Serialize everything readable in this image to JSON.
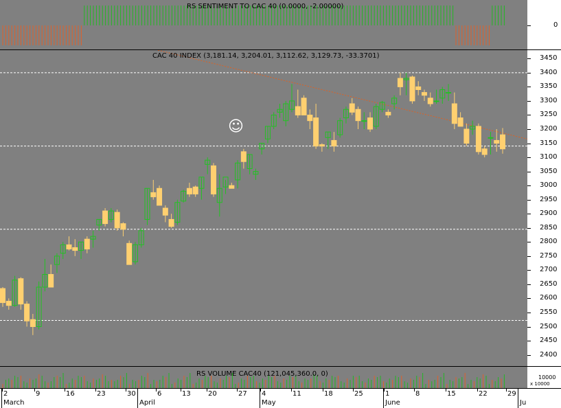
{
  "sentiment": {
    "title": "RS SENTIMENT TO CAC 40 (0.0000, -2.00000)",
    "axis_label": "0",
    "colors": {
      "positive": "#22b822",
      "negative": "#e0602a"
    },
    "pos": [
      0,
      0,
      0,
      0,
      0,
      0,
      0,
      0,
      0,
      0,
      0,
      0,
      0,
      0,
      0,
      0,
      0,
      0,
      0,
      0,
      0,
      0,
      0,
      0,
      0,
      0,
      0,
      1,
      1,
      1,
      1,
      1,
      1,
      1,
      1,
      1,
      1,
      1,
      1,
      1,
      1,
      1,
      1,
      1,
      1,
      1,
      1,
      1,
      1,
      1,
      1,
      1,
      1,
      1,
      1,
      1,
      1,
      1,
      1,
      1,
      1,
      1,
      1,
      1,
      1,
      1,
      1,
      1,
      1,
      1,
      1,
      1,
      1,
      1,
      1,
      1,
      1,
      1,
      1,
      1,
      1,
      1,
      1,
      1,
      1,
      1,
      1,
      1,
      1,
      1,
      1,
      1,
      1,
      1,
      1,
      1,
      1,
      1,
      1,
      1,
      1,
      1,
      1,
      1,
      1,
      1,
      1,
      1,
      1,
      1,
      1,
      1,
      1,
      1,
      1,
      1,
      1,
      1,
      1,
      1,
      1,
      1,
      1,
      1,
      1,
      1,
      1,
      1,
      1,
      1,
      1,
      1,
      1,
      1,
      1,
      1,
      1,
      1,
      1,
      1,
      1,
      1,
      1,
      1,
      1,
      1,
      1,
      1,
      1,
      1,
      0,
      0,
      0,
      0,
      0,
      0,
      0,
      0,
      0,
      0,
      0,
      0,
      1,
      1,
      1,
      1,
      1,
      1,
      1,
      1,
      1,
      1,
      1,
      1,
      1,
      1,
      0,
      0,
      0,
      0,
      0,
      0
    ]
  },
  "price": {
    "title": "CAC 40 INDEX (3,181.14, 3,204.01, 3,112.62, 3,129.73, -33.3701)",
    "smiley": "☺",
    "colors": {
      "up": "#22c222",
      "down": "#ffd070",
      "trend": "#e06020",
      "hline": "#ffffff"
    },
    "ylim": [
      2360,
      3480
    ],
    "yticks": [
      2400,
      2450,
      2500,
      2550,
      2600,
      2650,
      2700,
      2750,
      2800,
      2850,
      2900,
      2950,
      3000,
      3050,
      3100,
      3150,
      3200,
      3250,
      3300,
      3350,
      3400,
      3450
    ],
    "hlines": [
      3400,
      3140,
      2845,
      2522
    ],
    "trendline": {
      "from": [
        0,
        3480
      ],
      "to": [
        82,
        3165
      ]
    },
    "candles": [
      [
        2635,
        2640,
        2570,
        2585
      ],
      [
        2590,
        2600,
        2560,
        2575
      ],
      [
        2575,
        2680,
        2570,
        2665
      ],
      [
        2670,
        2675,
        2560,
        2580
      ],
      [
        2580,
        2590,
        2500,
        2520
      ],
      [
        2525,
        2545,
        2470,
        2500
      ],
      [
        2500,
        2660,
        2490,
        2640
      ],
      [
        2640,
        2740,
        2625,
        2685
      ],
      [
        2685,
        2720,
        2640,
        2640
      ],
      [
        2720,
        2760,
        2690,
        2750
      ],
      [
        2760,
        2800,
        2740,
        2790
      ],
      [
        2790,
        2820,
        2770,
        2775
      ],
      [
        2780,
        2810,
        2750,
        2770
      ],
      [
        2770,
        2800,
        2740,
        2800
      ],
      [
        2810,
        2820,
        2760,
        2775
      ],
      [
        2810,
        2840,
        2780,
        2820
      ],
      [
        2860,
        2880,
        2840,
        2880
      ],
      [
        2910,
        2920,
        2855,
        2865
      ],
      [
        2880,
        2920,
        2870,
        2910
      ],
      [
        2905,
        2915,
        2840,
        2850
      ],
      [
        2865,
        2870,
        2820,
        2845
      ],
      [
        2795,
        2805,
        2720,
        2720
      ],
      [
        2730,
        2800,
        2720,
        2790
      ],
      [
        2790,
        2850,
        2780,
        2840
      ],
      [
        2880,
        2990,
        2860,
        2990
      ],
      [
        2975,
        3020,
        2950,
        2960
      ],
      [
        2990,
        3000,
        2930,
        2930
      ],
      [
        2920,
        2930,
        2870,
        2895
      ],
      [
        2880,
        2900,
        2850,
        2855
      ],
      [
        2870,
        2950,
        2860,
        2940
      ],
      [
        2945,
        2985,
        2940,
        2980
      ],
      [
        2990,
        3010,
        2960,
        2970
      ],
      [
        2995,
        3000,
        2960,
        2970
      ],
      [
        2990,
        3030,
        2950,
        3030
      ],
      [
        3075,
        3100,
        3040,
        3090
      ],
      [
        3070,
        3080,
        2960,
        2970
      ],
      [
        2940,
        3040,
        2890,
        2990
      ],
      [
        2995,
        3020,
        2970,
        3030
      ],
      [
        3000,
        3010,
        2990,
        2990
      ],
      [
        3020,
        3090,
        2990,
        3080
      ],
      [
        3120,
        3130,
        3060,
        3085
      ],
      [
        3060,
        3110,
        3040,
        3110
      ],
      [
        3040,
        3060,
        3020,
        3050
      ],
      [
        3130,
        3150,
        3110,
        3150
      ],
      [
        3165,
        3210,
        3150,
        3210
      ],
      [
        3210,
        3260,
        3200,
        3250
      ],
      [
        3260,
        3290,
        3240,
        3270
      ],
      [
        3230,
        3300,
        3210,
        3290
      ],
      [
        3270,
        3360,
        3260,
        3300
      ],
      [
        3280,
        3340,
        3240,
        3250
      ],
      [
        3310,
        3320,
        3250,
        3250
      ],
      [
        3250,
        3270,
        3200,
        3230
      ],
      [
        3240,
        3290,
        3130,
        3140
      ],
      [
        3145,
        3150,
        3120,
        3140
      ],
      [
        3170,
        3190,
        3130,
        3190
      ],
      [
        3160,
        3190,
        3120,
        3140
      ],
      [
        3180,
        3240,
        3170,
        3230
      ],
      [
        3240,
        3280,
        3220,
        3270
      ],
      [
        3290,
        3310,
        3250,
        3260
      ],
      [
        3270,
        3280,
        3200,
        3230
      ],
      [
        3230,
        3260,
        3200,
        3230
      ],
      [
        3240,
        3260,
        3190,
        3200
      ],
      [
        3210,
        3290,
        3200,
        3280
      ],
      [
        3270,
        3300,
        3260,
        3295
      ],
      [
        3260,
        3270,
        3240,
        3250
      ],
      [
        3290,
        3320,
        3270,
        3310
      ],
      [
        3380,
        3400,
        3320,
        3350
      ],
      [
        3375,
        3400,
        3320,
        3380
      ],
      [
        3385,
        3390,
        3290,
        3300
      ],
      [
        3350,
        3370,
        3320,
        3340
      ],
      [
        3330,
        3340,
        3300,
        3320
      ],
      [
        3310,
        3330,
        3280,
        3290
      ],
      [
        3300,
        3340,
        3290,
        3300
      ],
      [
        3310,
        3350,
        3290,
        3340
      ],
      [
        3330,
        3360,
        3300,
        3330
      ],
      [
        3290,
        3330,
        3200,
        3220
      ],
      [
        3240,
        3260,
        3210,
        3210
      ],
      [
        3200,
        3220,
        3140,
        3150
      ],
      [
        3200,
        3230,
        3180,
        3210
      ],
      [
        3210,
        3220,
        3110,
        3120
      ],
      [
        3130,
        3140,
        3100,
        3110
      ],
      [
        3170,
        3190,
        3110,
        3170
      ],
      [
        3160,
        3200,
        3120,
        3150
      ],
      [
        3180,
        3204,
        3113,
        3130
      ]
    ]
  },
  "volume": {
    "title": "RS VOLUME CAC40 (121,045,360.0, 0)",
    "axis_label": "10000",
    "axis_label_2": "x 10000",
    "colors": {
      "up": "#22b822",
      "down": "#e0602a"
    },
    "bars": [
      2,
      3,
      3,
      2,
      3,
      2,
      2,
      3,
      2,
      3,
      2,
      2,
      3,
      2,
      3,
      2,
      2,
      3,
      3,
      2,
      3,
      2,
      2,
      3,
      2,
      3,
      2,
      2,
      3,
      2,
      3,
      2,
      2,
      3,
      2,
      3,
      3,
      2,
      2,
      3,
      2,
      3,
      2,
      3,
      2,
      2,
      3,
      2,
      3,
      2,
      3,
      2,
      2,
      3,
      2,
      3,
      2,
      2,
      3,
      2,
      3,
      2,
      3,
      2,
      2,
      3,
      2,
      3,
      2,
      2,
      3,
      2,
      3,
      2,
      3,
      2,
      3,
      2,
      2,
      3,
      2,
      3,
      2,
      2,
      3,
      2,
      3,
      2,
      3,
      2,
      2,
      3,
      2,
      3,
      2,
      3,
      2,
      2,
      3,
      2,
      3,
      2,
      2,
      3,
      2,
      3,
      2,
      3,
      2,
      3,
      2,
      2,
      3,
      2,
      3,
      2,
      3,
      2,
      2,
      3,
      2,
      3,
      2,
      3,
      2,
      2,
      3,
      2,
      3,
      2,
      3,
      2,
      2,
      3,
      2,
      3,
      2,
      3,
      2,
      3,
      2,
      3,
      2,
      2,
      3,
      2,
      3,
      2,
      3,
      2,
      3,
      2,
      2,
      3,
      2,
      3,
      2,
      3,
      2,
      3,
      2,
      2,
      3,
      2,
      3,
      2,
      3,
      2,
      3,
      2,
      3,
      2,
      2,
      3,
      2,
      3,
      2,
      3,
      2,
      2,
      3,
      2,
      3,
      2,
      3
    ]
  },
  "dates": {
    "days": [
      "2",
      "9",
      "16",
      "23",
      "30",
      "6",
      "13",
      "20",
      "27",
      "4",
      "11",
      "18",
      "25",
      "1",
      "8",
      "15",
      "22",
      "29"
    ],
    "months": [
      "March",
      "April",
      "May",
      "June",
      "Ju"
    ]
  }
}
